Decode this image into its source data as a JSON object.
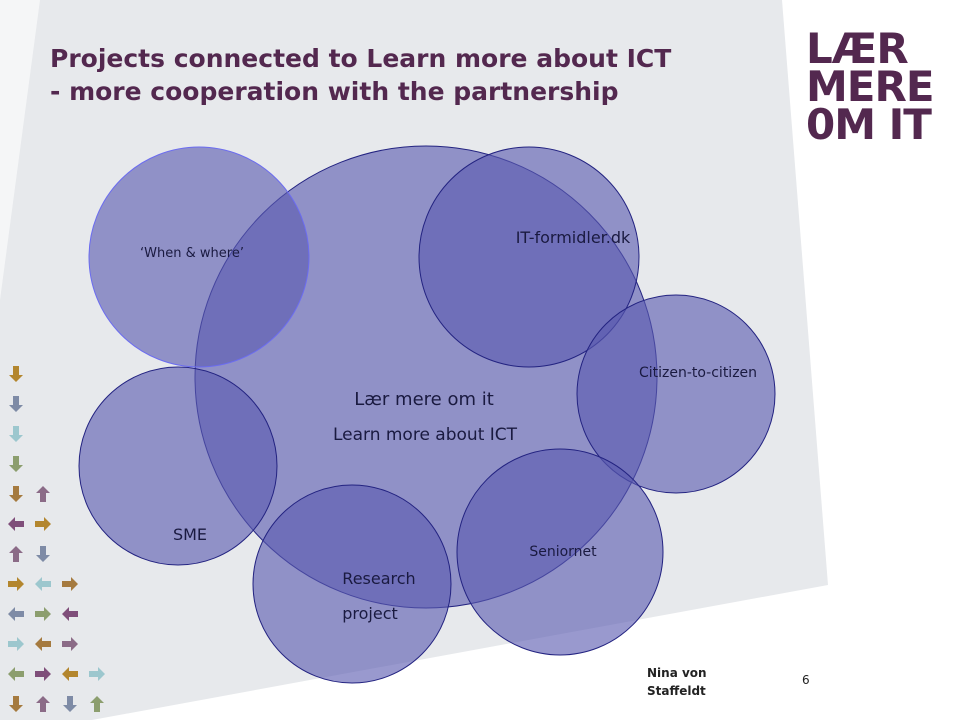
{
  "slide": {
    "title_line1": "Projects connected to Learn more about ICT",
    "title_line2": "- more cooperation with the partnership",
    "logo": {
      "line1": "LÆR",
      "line2": "MERE",
      "line3": "0M IT",
      "color": "#53284F"
    },
    "footer": {
      "name_line1": "Nina von",
      "name_line2": "Staffeldt",
      "page": "6"
    }
  },
  "diagram": {
    "center": {
      "line1": "Lær mere om it",
      "line2": "Learn more about ICT"
    },
    "circles": {
      "when_where": "‘When & where’",
      "it_formidler": "IT-formidler.dk",
      "citizen": "Citizen-to-citizen",
      "sme": "SME",
      "research_line1": "Research",
      "research_line2": "project",
      "seniornet": "Seniornet"
    },
    "fill": "#5A5BB0",
    "stroke": "#232381"
  }
}
